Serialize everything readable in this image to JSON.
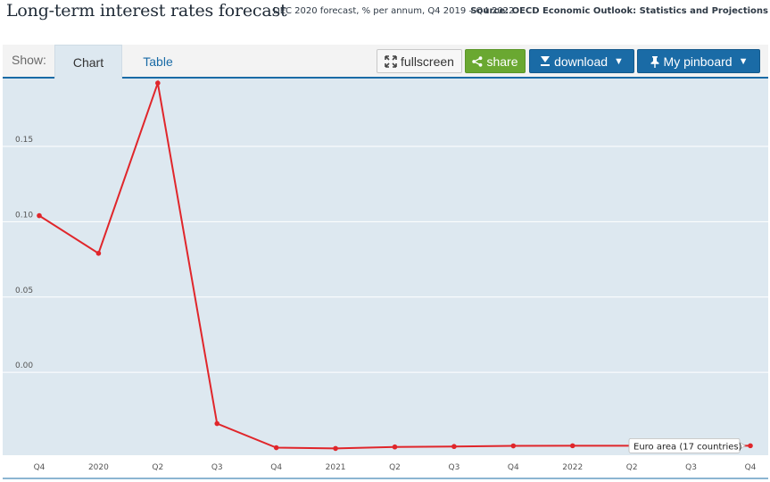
{
  "header": {
    "title": "Long-term interest rates forecast",
    "subtitle": "DEC 2020 forecast, % per annum, Q4 2019 – Q4 2022",
    "source": "Source: OECD Economic Outlook: Statistics and Projections"
  },
  "toolbar": {
    "show_label": "Show:",
    "tabs": [
      {
        "label": "Chart",
        "active": true
      },
      {
        "label": "Table",
        "active": false
      }
    ],
    "fullscreen_label": "fullscreen",
    "share_label": "share",
    "download_label": "download",
    "pinboard_label": "My pinboard",
    "share_color": "#6aa831",
    "primary_color": "#1a6ba6"
  },
  "chart_data": {
    "type": "line",
    "title": "",
    "xlabel": "",
    "ylabel": "",
    "ylim": [
      -0.055,
      0.195
    ],
    "yticks": [
      0.0,
      0.05,
      0.1,
      0.15
    ],
    "ytick_labels": [
      "0.00",
      "0.05",
      "0.10",
      "0.15"
    ],
    "categories": [
      "Q4",
      "2020",
      "Q2",
      "Q3",
      "Q4",
      "2021",
      "Q2",
      "Q3",
      "Q4",
      "2022",
      "Q2",
      "Q3",
      "Q4"
    ],
    "grid": true,
    "series": [
      {
        "name": "Euro area (17 countries)",
        "color": "#e0262b",
        "values": [
          0.104,
          0.079,
          0.192,
          -0.034,
          -0.05,
          -0.0505,
          -0.0495,
          -0.0492,
          -0.0488,
          -0.0487,
          -0.0487,
          -0.0487,
          -0.0487
        ]
      }
    ],
    "background": "#dde8f0"
  }
}
